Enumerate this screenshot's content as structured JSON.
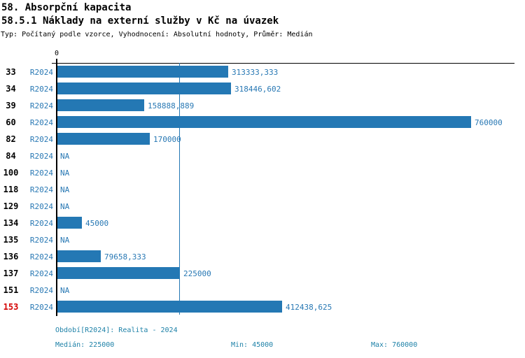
{
  "header": {
    "title": "58. Absorpční kapacita",
    "subtitle": "58.5.1 Náklady na externí služby v Kč na úvazek",
    "meta": "Typ: Počítaný podle vzorce, Vyhodnocení: Absolutní hodnoty, Průměr: Medián"
  },
  "axis": {
    "zero_label": "0"
  },
  "chart_data": {
    "type": "bar",
    "orientation": "horizontal",
    "title": "58.5.1 Náklady na externí služby v Kč na úvazek",
    "categories": [
      "33",
      "34",
      "39",
      "60",
      "82",
      "84",
      "100",
      "118",
      "129",
      "134",
      "135",
      "136",
      "137",
      "151",
      "153"
    ],
    "series": [
      {
        "name": "R2024",
        "values": [
          313333.333,
          318446.602,
          158888.889,
          760000,
          170000,
          null,
          null,
          null,
          null,
          45000,
          null,
          79658.333,
          225000,
          null,
          412438.625
        ]
      }
    ],
    "value_labels": [
      "313333,333",
      "318446,602",
      "158888,889",
      "760000",
      "170000",
      "NA",
      "NA",
      "NA",
      "NA",
      "45000",
      "NA",
      "79658,333",
      "225000",
      "NA",
      "412438,625"
    ],
    "xlim": [
      0,
      838000
    ],
    "grid": false,
    "legend": "none",
    "median": 225000,
    "min": 45000,
    "max": 760000,
    "median_line": true,
    "highlighted_category": "153"
  },
  "footer": {
    "period": "Období[R2024]: Realita - 2024",
    "median": "Medián: 225000",
    "min": "Min: 45000",
    "max": "Max: 760000"
  },
  "colors": {
    "bar": "#2478b4",
    "value_text": "#2878b4",
    "highlight_row": "#d40000",
    "footer_text": "#1f82a8",
    "axis": "#000000"
  }
}
